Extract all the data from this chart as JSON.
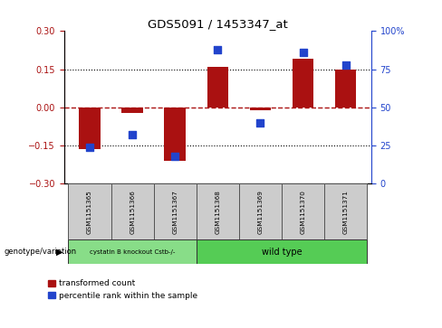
{
  "title": "GDS5091 / 1453347_at",
  "samples": [
    "GSM1151365",
    "GSM1151366",
    "GSM1151367",
    "GSM1151368",
    "GSM1151369",
    "GSM1151370",
    "GSM1151371"
  ],
  "red_bars": [
    -0.165,
    -0.02,
    -0.21,
    0.16,
    -0.01,
    0.19,
    0.15
  ],
  "blue_dots": [
    24,
    32,
    18,
    88,
    40,
    86,
    78
  ],
  "ylim_left": [
    -0.3,
    0.3
  ],
  "ylim_right": [
    0,
    100
  ],
  "yticks_left": [
    -0.3,
    -0.15,
    0,
    0.15,
    0.3
  ],
  "yticks_right": [
    0,
    25,
    50,
    75,
    100
  ],
  "hlines_dotted": [
    -0.15,
    0.15
  ],
  "hline_red_dashed": 0,
  "group1_label": "cystatin B knockout Cstb-/-",
  "group1_samples": [
    0,
    1,
    2
  ],
  "group2_label": "wild type",
  "group2_samples": [
    3,
    4,
    5,
    6
  ],
  "group_label_prefix": "genotype/variation",
  "legend_red": "transformed count",
  "legend_blue": "percentile rank within the sample",
  "bar_color": "#aa1111",
  "dot_color": "#2244cc",
  "group1_color": "#88dd88",
  "group2_color": "#55cc55",
  "bg_color": "#ffffff",
  "plot_bg": "#ffffff",
  "bar_width": 0.5,
  "dot_size": 30
}
